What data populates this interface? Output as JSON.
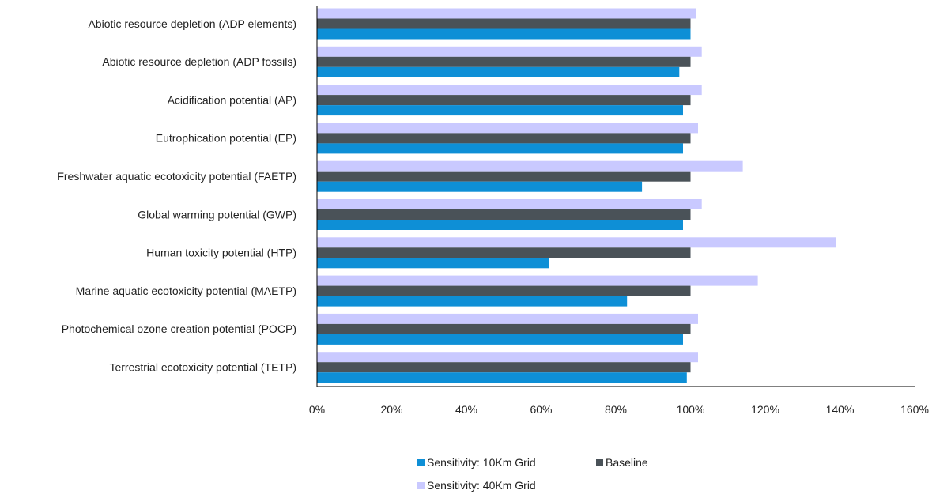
{
  "chart_data": {
    "type": "bar",
    "orientation": "horizontal",
    "categories": [
      "Abiotic resource depletion (ADP elements)",
      "Abiotic resource depletion (ADP fossils)",
      "Acidification potential (AP)",
      "Eutrophication potential (EP)",
      "Freshwater aquatic ecotoxicity potential (FAETP)",
      "Global warming potential (GWP)",
      "Human toxicity potential (HTP)",
      "Marine aquatic ecotoxicity potential (MAETP)",
      "Photochemical ozone creation potential (POCP)",
      "Terrestrial ecotoxicity potential (TETP)"
    ],
    "series": [
      {
        "name": "Sensitivity: 40Km Grid",
        "color": "#c9c9ff",
        "values": [
          101.5,
          103,
          103,
          102,
          114,
          103,
          139,
          118,
          102,
          102
        ]
      },
      {
        "name": "Baseline",
        "color": "#4a5258",
        "values": [
          100,
          100,
          100,
          100,
          100,
          100,
          100,
          100,
          100,
          100
        ]
      },
      {
        "name": "Sensitivity: 10Km Grid",
        "color": "#0e8fd6",
        "values": [
          100,
          97,
          98,
          98,
          87,
          98,
          62,
          83,
          98,
          99
        ]
      }
    ],
    "xlim": [
      0,
      160
    ],
    "xticks": [
      "0%",
      "20%",
      "40%",
      "60%",
      "80%",
      "100%",
      "120%",
      "140%",
      "160%"
    ],
    "xlabel": "",
    "ylabel": "",
    "grid": false,
    "legend_position": "bottom"
  },
  "legend": [
    {
      "label": "Sensitivity: 10Km Grid",
      "color": "#0e8fd6"
    },
    {
      "label": "Baseline",
      "color": "#4a5258"
    },
    {
      "label": "Sensitivity: 40Km Grid",
      "color": "#c9c9ff"
    }
  ]
}
